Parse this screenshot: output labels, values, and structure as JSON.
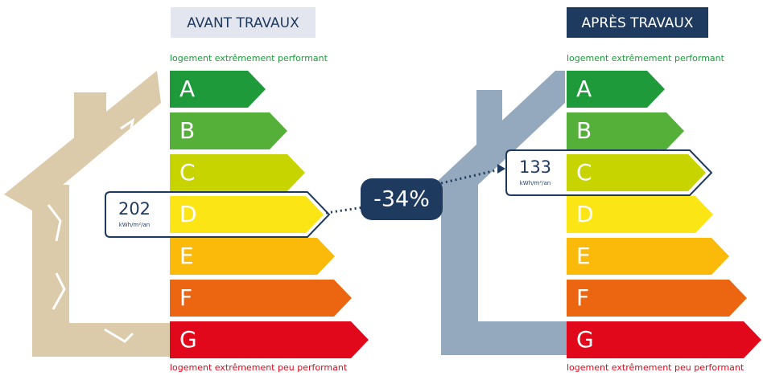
{
  "left": {
    "title": "AVANT TRAVAUX",
    "top_label": "logement extrêmement performant",
    "classes": [
      "A",
      "B",
      "C",
      "D",
      "E",
      "F",
      "G"
    ],
    "bottom_label": "logement extrêmement peu performant",
    "value": 202,
    "unit": "kWh/m²/an"
  },
  "right": {
    "title": "APRÈS TRAVAUX",
    "top_label": "logement extrêmement performant",
    "classes": [
      "A",
      "B",
      "C",
      "D",
      "E",
      "F",
      "G"
    ],
    "bottom_label": "logement extrêmement peu performant",
    "value": 133,
    "unit": "kWh/m²/an"
  },
  "badge": "-34%"
}
